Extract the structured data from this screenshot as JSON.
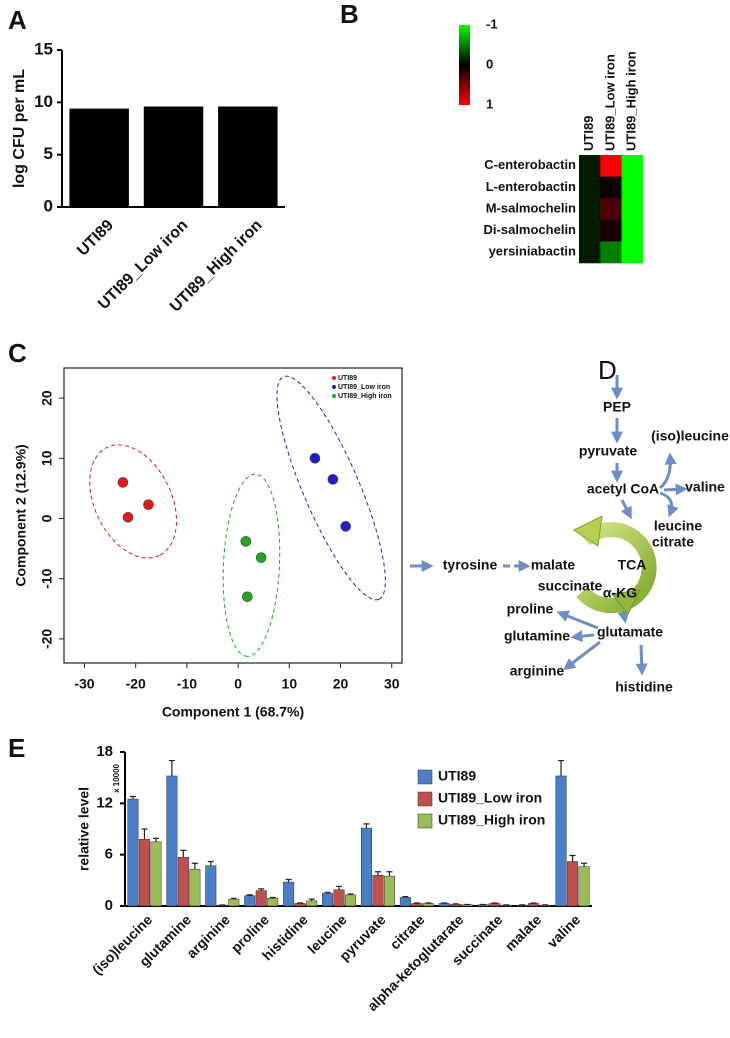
{
  "chart_data": [
    {
      "type": "bar",
      "panel": "A",
      "y_label": "log CFU per mL",
      "categories": [
        "UTI89",
        "UTI89_Low iron",
        "UTI89_High iron"
      ],
      "values": [
        9.4,
        9.6,
        9.6
      ],
      "color": "#000000",
      "ylim": [
        0,
        15
      ],
      "yticks": [
        0,
        5,
        10,
        15
      ]
    },
    {
      "type": "heatmap",
      "panel": "B",
      "columns": [
        "UTI89",
        "UTI89_Low iron",
        "UTI89_High iron"
      ],
      "rows": [
        "C-enterobactin",
        "L-enterobactin",
        "M-salmochelin",
        "Di-salmochelin",
        "yersiniabactin"
      ],
      "values": [
        [
          -0.1,
          1,
          -1
        ],
        [
          -0.1,
          0.05,
          -1
        ],
        [
          -0.1,
          0.3,
          -1
        ],
        [
          -0.1,
          0.1,
          -1
        ],
        [
          -0.1,
          -0.5,
          -1
        ]
      ],
      "clim": [
        -1,
        1
      ],
      "cticks": [
        -1,
        0,
        1
      ],
      "colors": [
        "#00ff00",
        "#000000",
        "#ff0000"
      ]
    },
    {
      "type": "scatter",
      "panel": "C",
      "x_label": "Component 1 (68.7%)",
      "y_label": "Component 2 (12.9%)",
      "series": [
        {
          "name": "UTI89",
          "color": "#e31a1c",
          "x": [
            -22.5,
            -17.5,
            -21.5
          ],
          "values": [
            6,
            2.3,
            0.2
          ]
        },
        {
          "name": "UTI89_Low iron",
          "color": "#1f1fc8",
          "x": [
            15,
            18.5,
            21
          ],
          "values": [
            10,
            6.5,
            -1.3
          ]
        },
        {
          "name": "UTI89_High iron",
          "color": "#1fa81f",
          "x": [
            1.5,
            4.5,
            1.8
          ],
          "values": [
            -3.8,
            -6.5,
            -13
          ]
        }
      ],
      "xlim": [
        -34,
        32
      ],
      "ylim": [
        -24,
        25
      ],
      "xticks": [
        -30,
        -20,
        -10,
        0,
        10,
        20,
        30
      ],
      "yticks": [
        -20,
        -10,
        0,
        10,
        20
      ],
      "legend": "upper right"
    },
    {
      "type": "bar",
      "panel": "E",
      "y_label": "relative level",
      "y_multiplier": "x 10000",
      "categories": [
        "(iso)leucine",
        "glutamine",
        "arginine",
        "proline",
        "histidine",
        "leucine",
        "pyruvate",
        "citrate",
        "alpha-ketoglutarate",
        "succinate",
        "malate",
        "valine"
      ],
      "series": [
        {
          "name": "UTI89",
          "color": "#4a7ec7",
          "values": [
            12.5,
            15.2,
            4.7,
            1.2,
            2.8,
            1.5,
            9.1,
            1.0,
            0.3,
            0.15,
            0.1,
            15.2
          ],
          "errors": [
            0.3,
            1.8,
            0.5,
            0.1,
            0.3,
            0.1,
            0.5,
            0.1,
            0.05,
            0.03,
            0.03,
            1.8
          ]
        },
        {
          "name": "UTI89_Low iron",
          "color": "#c0504d",
          "values": [
            7.8,
            5.7,
            0.1,
            1.8,
            0.3,
            1.9,
            3.6,
            0.3,
            0.2,
            0.3,
            0.3,
            5.2
          ],
          "errors": [
            1.2,
            0.8,
            0.02,
            0.2,
            0.05,
            0.4,
            0.4,
            0.05,
            0.05,
            0.05,
            0.05,
            0.7
          ]
        },
        {
          "name": "UTI89_High iron",
          "color": "#9bbb59",
          "values": [
            7.5,
            4.3,
            0.8,
            0.9,
            0.6,
            1.3,
            3.5,
            0.3,
            0.15,
            0.1,
            0.1,
            4.6
          ],
          "errors": [
            0.4,
            0.7,
            0.1,
            0.1,
            0.2,
            0.1,
            0.5,
            0.05,
            0.03,
            0.03,
            0.03,
            0.4
          ]
        }
      ],
      "ylim": [
        0,
        18
      ],
      "yticks": [
        0,
        6,
        12,
        18
      ],
      "legend": "upper right"
    }
  ],
  "diagram": {
    "panel": "D",
    "nodes": [
      {
        "label": "PEP"
      },
      {
        "label": "pyruvate"
      },
      {
        "label": "(iso)leucine"
      },
      {
        "label": "acetyl CoA"
      },
      {
        "label": "valine"
      },
      {
        "label": "leucine"
      },
      {
        "label": "citrate"
      },
      {
        "label": "TCA"
      },
      {
        "label": "malate"
      },
      {
        "label": "succinate"
      },
      {
        "label": "α-KG"
      },
      {
        "label": "tyrosine"
      },
      {
        "label": "proline"
      },
      {
        "label": "glutamine"
      },
      {
        "label": "glutamate"
      },
      {
        "label": "arginine"
      },
      {
        "label": "histidine"
      }
    ]
  }
}
